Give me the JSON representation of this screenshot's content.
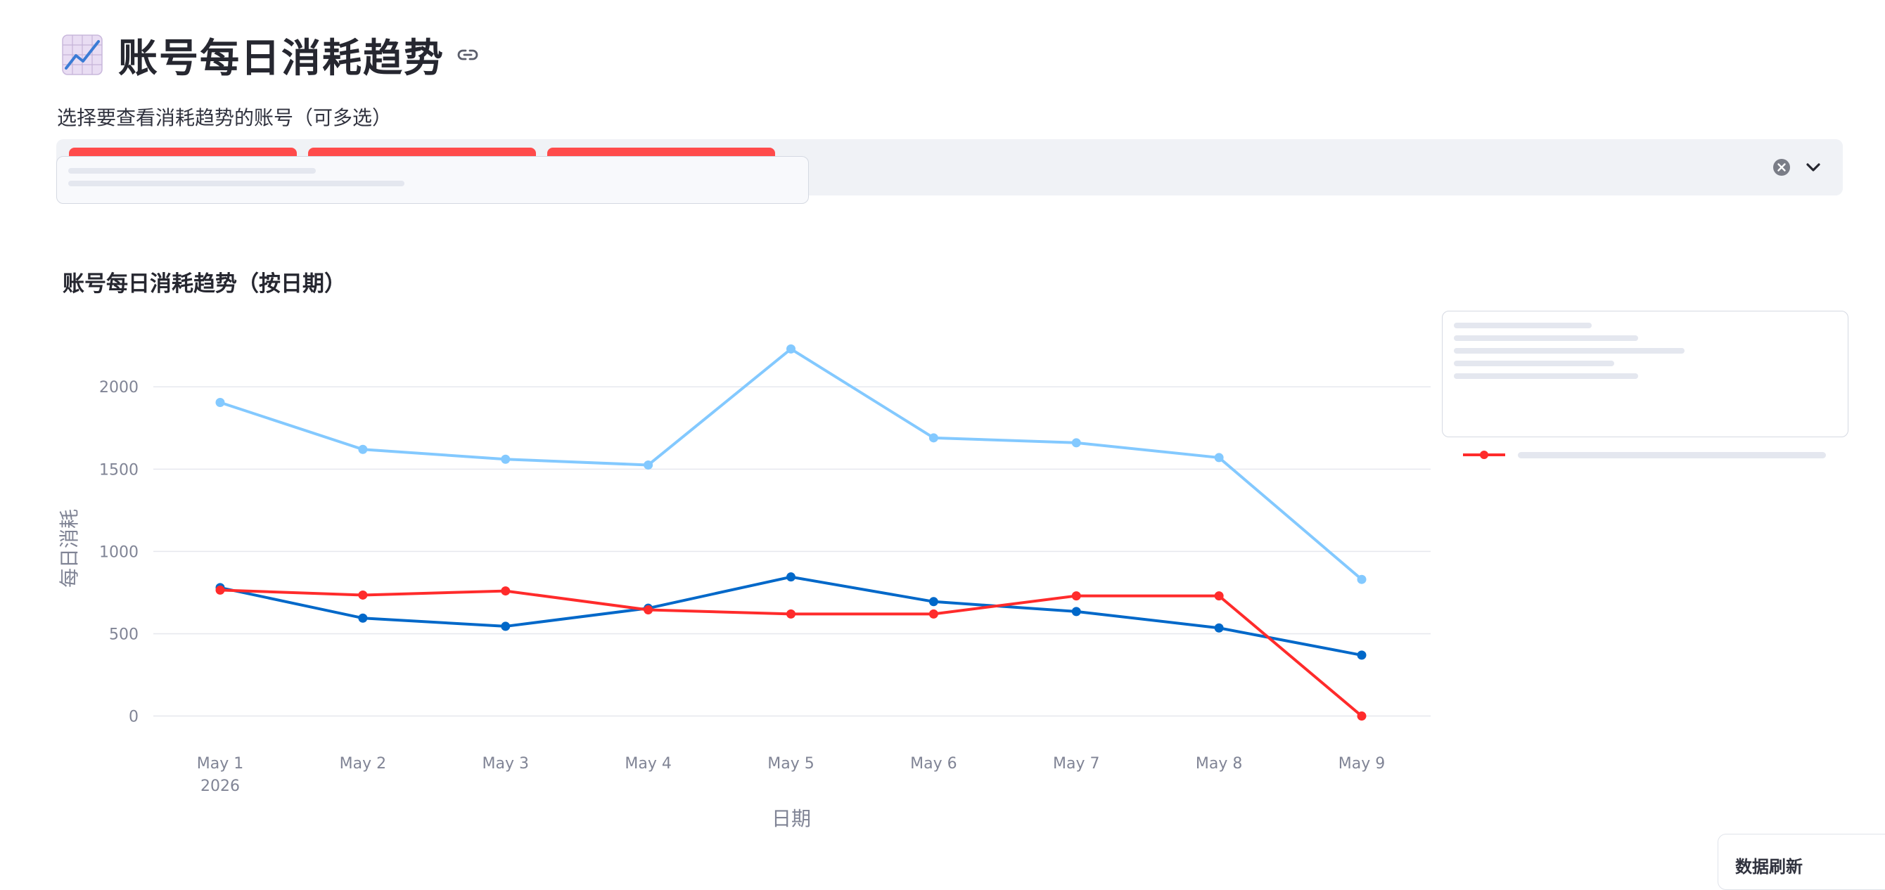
{
  "header": {
    "title": "账号每日消耗趋势",
    "title_icon": "chart-increasing-emoji",
    "link_icon": "link-icon"
  },
  "account_select": {
    "label": "选择要查看消耗趋势的账号（可多选）",
    "selected_count": 3,
    "tag_color": "#ff4b4b",
    "clear_icon": "clear-circle-icon",
    "dropdown_icon": "chevron-down-icon"
  },
  "corner_card": {
    "text": "数据刷新"
  },
  "colors": {
    "series_light_blue": "#83c9ff",
    "series_dark_blue": "#0068c9",
    "series_red": "#ff2b2b"
  },
  "chart_data": {
    "type": "line",
    "title": "账号每日消耗趋势（按日期）",
    "xlabel": "日期",
    "ylabel": "每日消耗",
    "categories": [
      "May 1",
      "May 2",
      "May 3",
      "May 4",
      "May 5",
      "May 6",
      "May 7",
      "May 8",
      "May 9"
    ],
    "x_year_label": "2026",
    "y_ticks": [
      0,
      500,
      1000,
      1500,
      2000
    ],
    "ylim": [
      -160,
      2300
    ],
    "grid": "horizontal",
    "legend_position": "right",
    "series": [
      {
        "color": "#83c9ff",
        "values": [
          1905,
          1620,
          1560,
          1525,
          2230,
          1690,
          1660,
          1570,
          830
        ]
      },
      {
        "color": "#0068c9",
        "values": [
          780,
          595,
          545,
          655,
          845,
          695,
          635,
          535,
          370
        ]
      },
      {
        "color": "#ff2b2b",
        "values": [
          765,
          735,
          760,
          645,
          620,
          620,
          730,
          730,
          0
        ]
      }
    ]
  }
}
